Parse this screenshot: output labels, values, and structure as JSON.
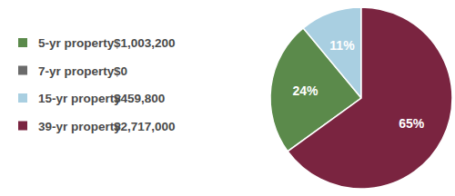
{
  "chart_data": {
    "type": "pie",
    "categories": [
      "5-yr property",
      "7-yr property",
      "15-yr property",
      "39-yr property"
    ],
    "values": [
      1003200,
      0,
      459800,
      2717000
    ],
    "value_labels": [
      "$1,003,200",
      "$0",
      "$459,800",
      "$2,717,000"
    ],
    "percentages": [
      24,
      null,
      11,
      65
    ],
    "percent_labels": [
      "24%",
      null,
      "11%",
      "65%"
    ],
    "colors": [
      "#5b8a4b",
      "#6b6b6b",
      "#a9cfe1",
      "#7a2440"
    ],
    "legend": "left",
    "data_labels": true
  }
}
